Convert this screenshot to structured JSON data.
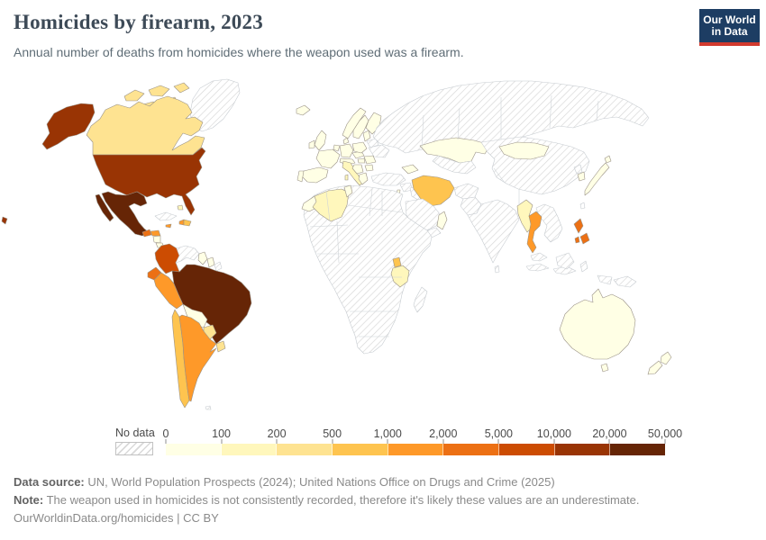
{
  "header": {
    "title": "Homicides by firearm, 2023",
    "subtitle": "Annual number of deaths from homicides where the weapon used was a firearm.",
    "logo": {
      "line1": "Our World",
      "line2": "in Data",
      "bg": "#1d3d63",
      "accent": "#d23a2e"
    }
  },
  "legend": {
    "no_data_label": "No data",
    "ticks": [
      "0",
      "100",
      "200",
      "500",
      "1,000",
      "2,000",
      "5,000",
      "10,000",
      "20,000",
      "50,000"
    ],
    "bucket_colors": [
      "#ffffe5",
      "#fff7bc",
      "#fee391",
      "#fec44f",
      "#fe9929",
      "#ec7014",
      "#cc4c02",
      "#993404",
      "#662506"
    ]
  },
  "map_style": {
    "ocean": "#ffffff",
    "no_data_stroke": "#c6cbd0",
    "colored_stroke": "#9a9287",
    "hatch_line": "#d6d6d6",
    "suggest_border": "#ced3d7"
  },
  "footer": {
    "data_source_label": "Data source:",
    "data_source_text": " UN, World Population Prospects (2024); United Nations Office on Drugs and Crime (2025)",
    "note_label": "Note:",
    "note_text": " The weapon used in homicides is not consistently recorded, therefore it's likely these values are an underestimate.",
    "attribution": "OurWorldinData.org/homicides | CC BY"
  },
  "chart_data": {
    "type": "choropleth",
    "title": "Homicides by firearm, 2023",
    "unit": "annual deaths from firearm homicides",
    "bucket_labels": [
      "0-100",
      "100-200",
      "200-500",
      "500-1,000",
      "1,000-2,000",
      "2,000-5,000",
      "5,000-10,000",
      "10,000-20,000",
      "20,000-50,000"
    ],
    "countries": {
      "canada": 2,
      "usa": 7,
      "mexico": 8,
      "guatemala": 5,
      "honduras": 4,
      "nicaragua": 0,
      "costa-rica": 0,
      "panama": 1,
      "cuba": "no_data",
      "jamaica": 4,
      "haiti": 4,
      "dominican-republic": 3,
      "bahamas": 1,
      "greenland": "no_data",
      "colombia": 6,
      "venezuela": "no_data",
      "guyana": 0,
      "suriname": 0,
      "french-guiana": "no_data",
      "ecuador": 5,
      "peru": 4,
      "brazil": 8,
      "bolivia": 0,
      "paraguay": 2,
      "uruguay": 2,
      "chile": 3,
      "argentina": 4,
      "falkland-islands": "no_data",
      "iceland": 0,
      "united-kingdom": 0,
      "ireland": 0,
      "norway": 0,
      "sweden": 0,
      "finland": 0,
      "denmark": 0,
      "germany": 0,
      "benelux": 0,
      "france": 0,
      "spain": 0,
      "portugal": 0,
      "italy": 1,
      "switzerland-austria": 0,
      "czechia-slovakia": 0,
      "poland": 0,
      "baltics": 0,
      "belarus": "no_data",
      "ukraine": "no_data",
      "hungary": 0,
      "romania": 0,
      "balkans": 0,
      "bulgaria": 0,
      "greece": 0,
      "russia": "no_data",
      "turkey": "no_data",
      "caucasus": 0,
      "kazakhstan": 0,
      "central-asia": "no_data",
      "iran": 3,
      "iraq": "no_data",
      "syria-levant": "no_data",
      "israel": 0,
      "saudi-arabia": "no_data",
      "yemen": "no_data",
      "oman": 0,
      "afghanistan": "no_data",
      "pakistan": "no_data",
      "india": "no_data",
      "sri-lanka": "no_data",
      "china": "no_data",
      "mongolia": 0,
      "myanmar": 1,
      "thailand": 4,
      "laos-vietnam-cambodia": "no_data",
      "malaysia": "no_data",
      "indonesia": "no_data",
      "philippines": 5,
      "taiwan": "no_data",
      "north-korea": "no_data",
      "south-korea": 0,
      "japan": 0,
      "africa-no-data-region": "no_data",
      "madagascar": "no_data",
      "morocco": 0,
      "algeria": 1,
      "tunisia": 0,
      "uganda": 3,
      "tanzania": 1,
      "australia": 0,
      "new-zealand": 0,
      "papua-new-guinea": "no_data"
    }
  }
}
